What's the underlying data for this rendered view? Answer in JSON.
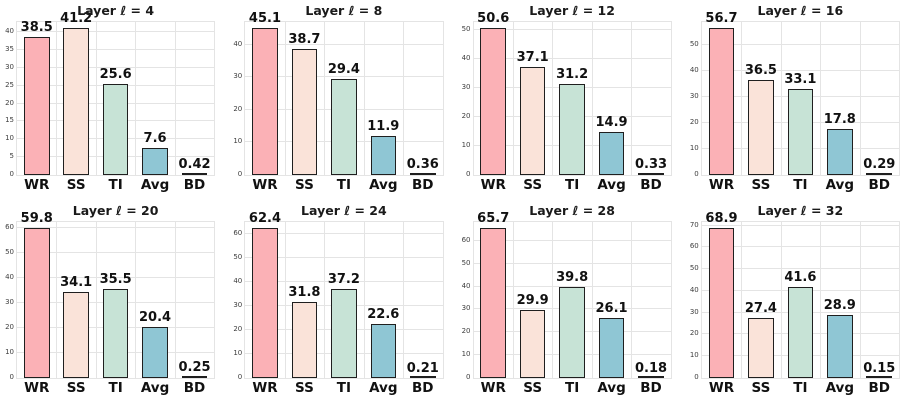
{
  "page": {
    "background": "#ffffff"
  },
  "palette": {
    "bar_colors": [
      "#fbb1b6",
      "#fae3d9",
      "#c7e3d6",
      "#8fc6d4",
      "#e9e2da"
    ],
    "bar_edge": "#1f1f1f",
    "grid": "#e4e4e4",
    "tick_label": "#3d3d3d",
    "text": "#111111"
  },
  "chart_data": [
    {
      "type": "bar",
      "title": "Layer ℓ = 4",
      "categories": [
        "WR",
        "SS",
        "TI",
        "Avg",
        "BD"
      ],
      "values": [
        38.5,
        41.2,
        25.6,
        7.6,
        0.42
      ],
      "bar_labels": [
        "38.5",
        "41.2",
        "25.6",
        "7.6",
        "0.42"
      ],
      "yticks": [
        0,
        5,
        10,
        15,
        20,
        25,
        30,
        35,
        40
      ],
      "ylim": [
        0,
        42.8
      ],
      "grid": "on",
      "legend": "none"
    },
    {
      "type": "bar",
      "title": "Layer ℓ = 8",
      "categories": [
        "WR",
        "SS",
        "TI",
        "Avg",
        "BD"
      ],
      "values": [
        45.1,
        38.7,
        29.4,
        11.9,
        0.36
      ],
      "bar_labels": [
        "45.1",
        "38.7",
        "29.4",
        "11.9",
        "0.36"
      ],
      "yticks": [
        0,
        10,
        20,
        30,
        40
      ],
      "ylim": [
        0,
        46.9
      ],
      "grid": "on",
      "legend": "none"
    },
    {
      "type": "bar",
      "title": "Layer ℓ = 12",
      "categories": [
        "WR",
        "SS",
        "TI",
        "Avg",
        "BD"
      ],
      "values": [
        50.6,
        37.1,
        31.2,
        14.9,
        0.33
      ],
      "bar_labels": [
        "50.6",
        "37.1",
        "31.2",
        "14.9",
        "0.33"
      ],
      "yticks": [
        0,
        10,
        20,
        30,
        40,
        50
      ],
      "ylim": [
        0,
        52.6
      ],
      "grid": "on",
      "legend": "none"
    },
    {
      "type": "bar",
      "title": "Layer ℓ = 16",
      "categories": [
        "WR",
        "SS",
        "TI",
        "Avg",
        "BD"
      ],
      "values": [
        56.7,
        36.5,
        33.1,
        17.8,
        0.29
      ],
      "bar_labels": [
        "56.7",
        "36.5",
        "33.1",
        "17.8",
        "0.29"
      ],
      "yticks": [
        0,
        10,
        20,
        30,
        40,
        50
      ],
      "ylim": [
        0,
        58.9
      ],
      "grid": "on",
      "legend": "none"
    },
    {
      "type": "bar",
      "title": "Layer ℓ = 20",
      "categories": [
        "WR",
        "SS",
        "TI",
        "Avg",
        "BD"
      ],
      "values": [
        59.8,
        34.1,
        35.5,
        20.4,
        0.25
      ],
      "bar_labels": [
        "59.8",
        "34.1",
        "35.5",
        "20.4",
        "0.25"
      ],
      "yticks": [
        0,
        10,
        20,
        30,
        40,
        50,
        60
      ],
      "ylim": [
        0,
        62.2
      ],
      "grid": "on",
      "legend": "none"
    },
    {
      "type": "bar",
      "title": "Layer ℓ = 24",
      "categories": [
        "WR",
        "SS",
        "TI",
        "Avg",
        "BD"
      ],
      "values": [
        62.4,
        31.8,
        37.2,
        22.6,
        0.21
      ],
      "bar_labels": [
        "62.4",
        "31.8",
        "37.2",
        "22.6",
        "0.21"
      ],
      "yticks": [
        0,
        10,
        20,
        30,
        40,
        50,
        60
      ],
      "ylim": [
        0,
        64.9
      ],
      "grid": "on",
      "legend": "none"
    },
    {
      "type": "bar",
      "title": "Layer ℓ = 28",
      "categories": [
        "WR",
        "SS",
        "TI",
        "Avg",
        "BD"
      ],
      "values": [
        65.7,
        29.9,
        39.8,
        26.1,
        0.18
      ],
      "bar_labels": [
        "65.7",
        "29.9",
        "39.8",
        "26.1",
        "0.18"
      ],
      "yticks": [
        0,
        10,
        20,
        30,
        40,
        50,
        60
      ],
      "ylim": [
        0,
        68.3
      ],
      "grid": "on",
      "legend": "none"
    },
    {
      "type": "bar",
      "title": "Layer ℓ = 32",
      "categories": [
        "WR",
        "SS",
        "TI",
        "Avg",
        "BD"
      ],
      "values": [
        68.9,
        27.4,
        41.6,
        28.9,
        0.15
      ],
      "bar_labels": [
        "68.9",
        "27.4",
        "41.6",
        "28.9",
        "0.15"
      ],
      "yticks": [
        0,
        10,
        20,
        30,
        40,
        50,
        60,
        70
      ],
      "ylim": [
        0,
        71.6
      ],
      "grid": "on",
      "legend": "none"
    }
  ]
}
